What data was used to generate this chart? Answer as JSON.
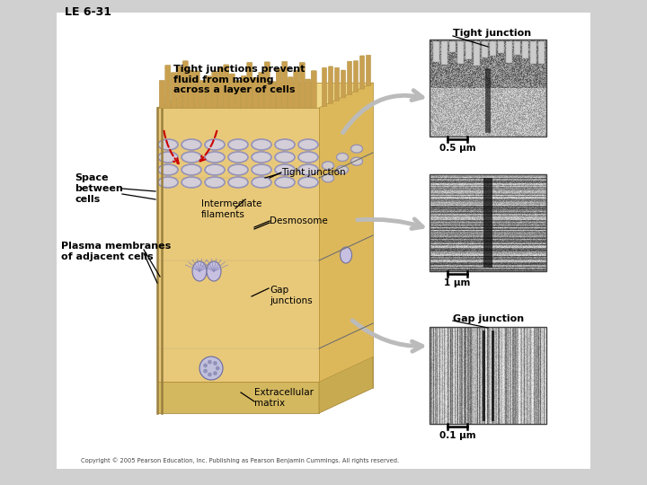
{
  "title": "LE 6-31",
  "background_color": "#d0d0d0",
  "panel_bg": "#ffffff",
  "main_label": "Tight junctions prevent\nfluid from moving\nacross a layer of cells",
  "labels": {
    "tight_junction_top": "Tight junction",
    "tight_junction_mid": "Tight junction",
    "intermediate_filaments": "Intermediate\nfilaments",
    "desmosome": "Desmosome",
    "gap_junctions": "Gap\njunctions",
    "space_between": "Space\nbetween\ncells",
    "plasma_membranes": "Plasma membranes\nof adjacent cells",
    "extracellular_matrix": "Extracellular\nmatrix",
    "gap_junction_bottom": "Gap junction"
  },
  "scale_bars": {
    "top": "0.5 μm",
    "mid": "1 μm",
    "bot": "0.1 μm"
  },
  "cell_body_color": "#e8c97a",
  "cell_body_color2": "#d4aa55",
  "cell_right_color": "#ddb85a",
  "microvilli_color": "#c8a050",
  "microvilli_tip": "#e0c070",
  "junction_color": "#8888bb",
  "junction_fill": "#d0d0e8",
  "base_color": "#d4b860",
  "base_side_color": "#c8aa50"
}
